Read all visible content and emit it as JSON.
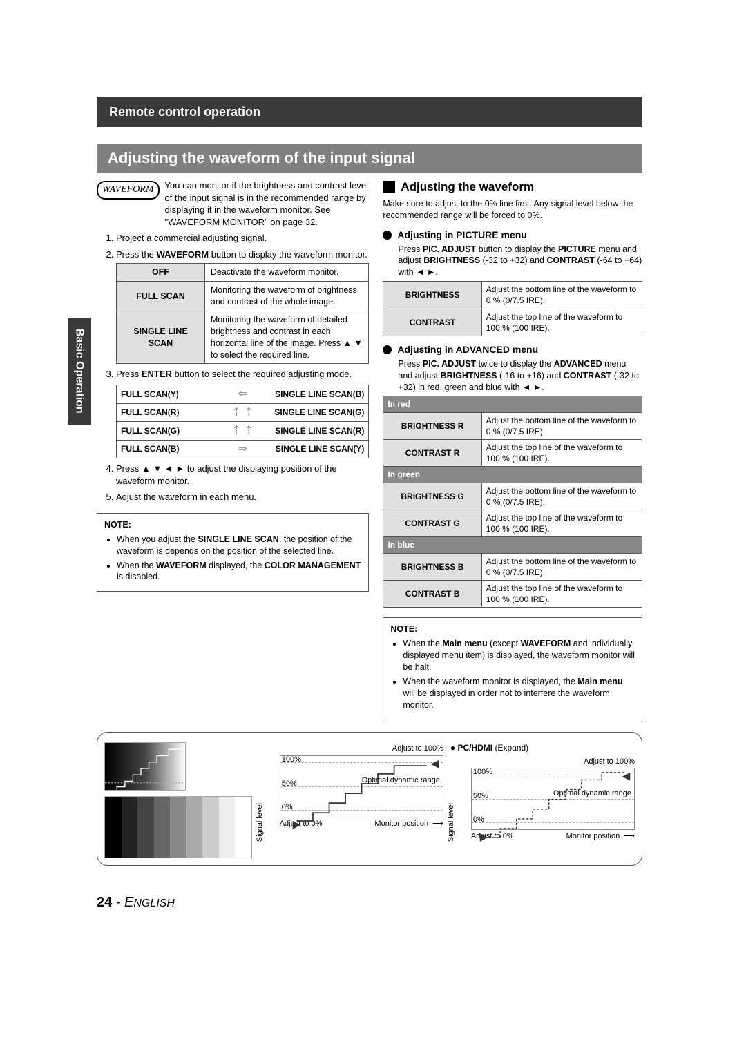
{
  "header": "Remote control operation",
  "section_band": "Adjusting the waveform of the input signal",
  "side_tab": "Basic Operation",
  "waveform_badge": "WAVEFORM",
  "intro": "You can monitor if the brightness and contrast level of the input signal is in the recommended range by displaying it in the waveform monitor. See \"WAVEFORM MONITOR\" on page 32.",
  "steps": {
    "s1": "Project a commercial adjusting signal.",
    "s2_a": "Press the ",
    "s2_b": "WAVEFORM",
    "s2_c": " button to display the waveform monitor.",
    "s3_a": "Press ",
    "s3_b": "ENTER",
    "s3_c": " button to select the required adjusting mode.",
    "s4": "Press ▲ ▼ ◄ ► to adjust the displaying position of the waveform monitor.",
    "s5": "Adjust the waveform in each menu."
  },
  "mode_table": [
    {
      "label": "OFF",
      "desc": "Deactivate the waveform monitor."
    },
    {
      "label": "FULL SCAN",
      "desc": "Monitoring the waveform of brightness and contrast of the whole image."
    },
    {
      "label": "SINGLE LINE SCAN",
      "desc": "Monitoring the waveform of detailed brightness and contrast in each horizontal line of the image. Press ▲ ▼ to select the required line."
    }
  ],
  "scan_flow": [
    {
      "l": "FULL SCAN(Y)",
      "arrow": "⇐",
      "r": "SINGLE LINE SCAN(B)"
    },
    {
      "l": "FULL SCAN(R)",
      "arrow": "↕",
      "r": "SINGLE LINE SCAN(G)"
    },
    {
      "l": "FULL SCAN(G)",
      "arrow": "↕",
      "r": "SINGLE LINE SCAN(R)"
    },
    {
      "l": "FULL SCAN(B)",
      "arrow": "⇒",
      "r": "SINGLE LINE SCAN(Y)"
    }
  ],
  "note1": {
    "title": "NOTE:",
    "items": [
      "When you adjust the <b>SINGLE LINE SCAN</b>, the position of the waveform is depends on the position of the selected line.",
      "When the <b>WAVEFORM</b> displayed, the <b>COLOR MANAGEMENT</b> is disabled."
    ]
  },
  "right": {
    "h1": "Adjusting the waveform",
    "p1": "Make sure to adjust to the 0% line first. Any signal level below the recommended range will be forced to 0%.",
    "pic_h": "Adjusting in PICTURE menu",
    "pic_p": "Press <b>PIC. ADJUST</b> button to display the <b>PICTURE</b> menu and adjust <b>BRIGHTNESS</b> (-32 to +32) and <b>CONTRAST</b> (-64 to +64) with ◄ ►.",
    "pic_table": [
      {
        "lbl": "BRIGHTNESS",
        "desc": "Adjust the bottom line of the waveform to 0 % (0/7.5 IRE)."
      },
      {
        "lbl": "CONTRAST",
        "desc": "Adjust the top line of the waveform to 100 % (100 IRE)."
      }
    ],
    "adv_h": "Adjusting in ADVANCED menu",
    "adv_p": "Press <b>PIC. ADJUST</b> twice to display the <b>ADVANCED</b> menu and adjust <b>BRIGHTNESS</b> (-16 to +16) and <b>CONTRAST</b> (-32 to +32) in red, green and blue with ◄ ►.",
    "adv_table": [
      {
        "grp": "In red"
      },
      {
        "lbl": "BRIGHTNESS R",
        "desc": "Adjust the bottom line of the waveform to 0 % (0/7.5 IRE)."
      },
      {
        "lbl": "CONTRAST R",
        "desc": "Adjust the top line of the waveform to 100 % (100 IRE)."
      },
      {
        "grp": "In green"
      },
      {
        "lbl": "BRIGHTNESS G",
        "desc": "Adjust the bottom line of the waveform to 0 % (0/7.5 IRE)."
      },
      {
        "lbl": "CONTRAST G",
        "desc": "Adjust the top line of the waveform to 100 % (100 IRE)."
      },
      {
        "grp": "In blue"
      },
      {
        "lbl": "BRIGHTNESS B",
        "desc": "Adjust the bottom line of the waveform to 0 % (0/7.5 IRE)."
      },
      {
        "lbl": "CONTRAST B",
        "desc": "Adjust the top line of the waveform to 100 % (100 IRE)."
      }
    ]
  },
  "note2": {
    "title": "NOTE:",
    "items": [
      "When the <b>Main menu</b> (except <b>WAVEFORM</b> and individually displayed menu item) is displayed, the waveform monitor will be halt.",
      "When  the waveform monitor is displayed, the <b>Main menu</b> will be displayed in order not to interfere the waveform monitor."
    ]
  },
  "diagram": {
    "pc_label_a": "● ",
    "pc_label_b": "PC/HDMI",
    "pc_label_c": " (Expand)",
    "adjust_100": "Adjust to 100%",
    "adjust_0": "Adjust to 0%",
    "axis": "Signal level",
    "optimal": "Optimal dynamic range",
    "monitor_pos": "Monitor position",
    "ticks": {
      "t100": "100%",
      "t50": "50%",
      "t0": "0%"
    }
  },
  "footer": {
    "page": "24",
    "sep": " - E",
    "lang": "NGLISH"
  }
}
